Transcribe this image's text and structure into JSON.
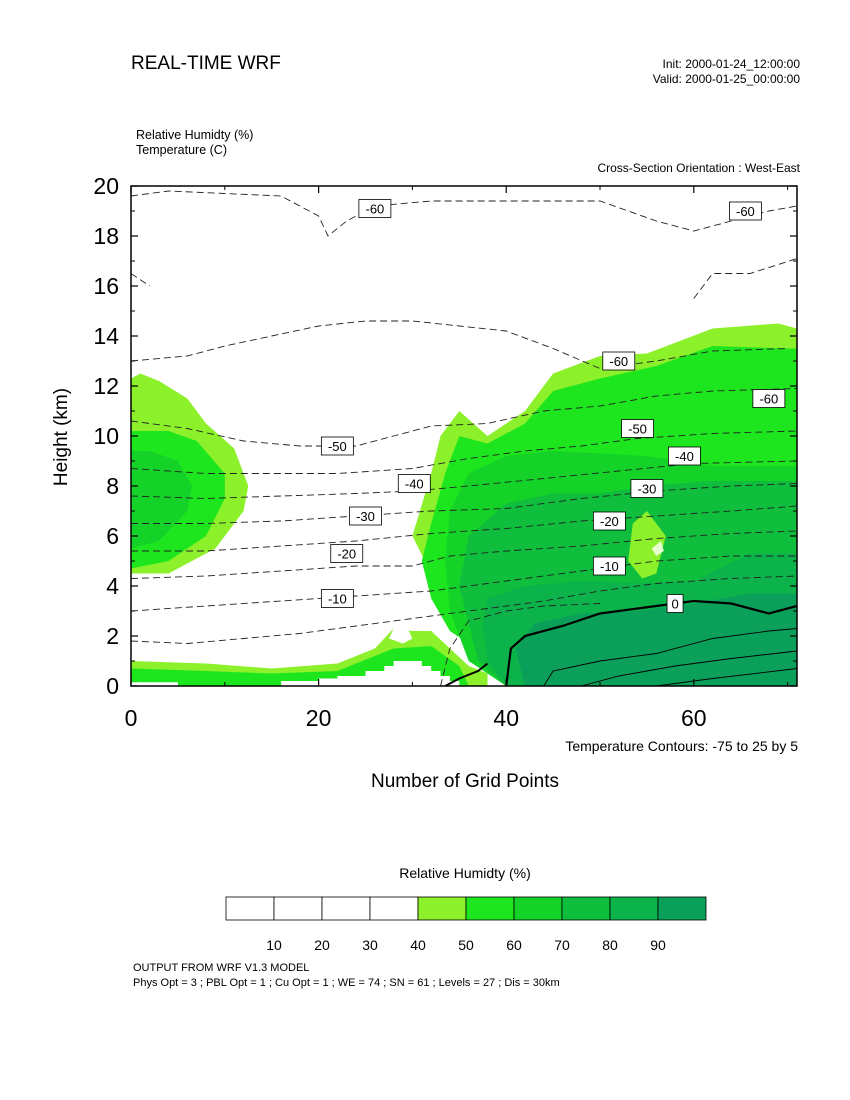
{
  "header": {
    "title": "REAL-TIME WRF",
    "init": "Init: 2000-01-24_12:00:00",
    "valid": "Valid: 2000-01-25_00:00:00",
    "field1": "Relative Humidty   (%)",
    "field2": "Temperature   (C)",
    "orientation": "Cross-Section Orientation : West-East"
  },
  "footer": {
    "contour_note": "Temperature Contours: -75 to 25 by 5",
    "line1": "OUTPUT FROM WRF V1.3 MODEL",
    "line2": "Phys Opt = 3 ; PBL Opt = 1 ; Cu Opt = 1 ; WE = 74 ; SN = 61 ; Levels = 27 ; Dis = 30km"
  },
  "chart_data": {
    "type": "heatmap",
    "title": "REAL-TIME WRF",
    "xlabel": "Number of Grid Points",
    "ylabel": "Height (km)",
    "xlim": [
      0,
      71
    ],
    "ylim": [
      0,
      20
    ],
    "xticks": [
      0,
      20,
      40,
      60
    ],
    "yticks": [
      0,
      2,
      4,
      6,
      8,
      10,
      12,
      14,
      16,
      18,
      20
    ],
    "contour_labels": [
      {
        "text": "-60",
        "x": 26,
        "y": 19.1
      },
      {
        "text": "-60",
        "x": 65.5,
        "y": 19.0
      },
      {
        "text": "-60",
        "x": 52,
        "y": 13.0
      },
      {
        "text": "-60",
        "x": 68,
        "y": 11.5
      },
      {
        "text": "-50",
        "x": 22,
        "y": 9.6
      },
      {
        "text": "-50",
        "x": 54,
        "y": 10.3
      },
      {
        "text": "-40",
        "x": 30.2,
        "y": 8.1
      },
      {
        "text": "-40",
        "x": 59,
        "y": 9.2
      },
      {
        "text": "-30",
        "x": 25,
        "y": 6.8
      },
      {
        "text": "-30",
        "x": 55,
        "y": 7.9
      },
      {
        "text": "-20",
        "x": 23,
        "y": 5.3
      },
      {
        "text": "-20",
        "x": 51,
        "y": 6.6
      },
      {
        "text": "-10",
        "x": 22,
        "y": 3.5
      },
      {
        "text": "-10",
        "x": 51,
        "y": 4.8
      },
      {
        "text": "0",
        "x": 58,
        "y": 3.3
      }
    ],
    "colorbar": {
      "title": "Relative Humidty  (%)",
      "levels": [
        10,
        20,
        30,
        40,
        50,
        60,
        70,
        80,
        90
      ],
      "colors": [
        "#ffffff",
        "#ffffff",
        "#ffffff",
        "#ffffff",
        "#8cf02a",
        "#1ee61e",
        "#14d228",
        "#0fbe3c",
        "#0cb24a",
        "#0aa05a"
      ]
    }
  }
}
